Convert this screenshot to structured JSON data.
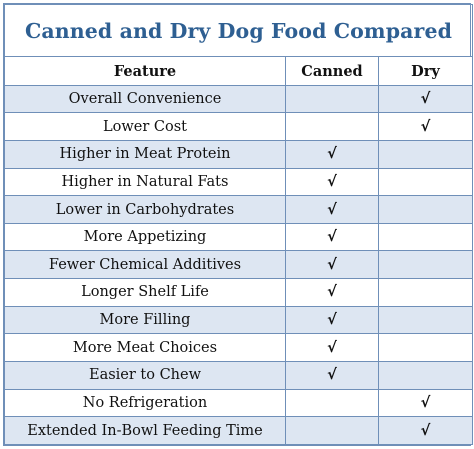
{
  "title": "Canned and Dry Dog Food Compared",
  "headers": {
    "feature": "Feature",
    "canned": "Canned",
    "dry": "Dry"
  },
  "check_symbol": "√",
  "rows": [
    {
      "feature": "Overall Convenience",
      "canned": "",
      "dry": "√"
    },
    {
      "feature": "Lower Cost",
      "canned": "",
      "dry": "√"
    },
    {
      "feature": "Higher in Meat Protein",
      "canned": "√",
      "dry": ""
    },
    {
      "feature": "Higher in Natural Fats",
      "canned": "√",
      "dry": ""
    },
    {
      "feature": "Lower in Carbohydrates",
      "canned": "√",
      "dry": ""
    },
    {
      "feature": "More Appetizing",
      "canned": "√",
      "dry": ""
    },
    {
      "feature": "Fewer Chemical Additives",
      "canned": "√",
      "dry": ""
    },
    {
      "feature": "Longer Shelf Life",
      "canned": "√",
      "dry": ""
    },
    {
      "feature": "More Filling",
      "canned": "√",
      "dry": ""
    },
    {
      "feature": "More Meat Choices",
      "canned": "√",
      "dry": ""
    },
    {
      "feature": "Easier to Chew",
      "canned": "√",
      "dry": ""
    },
    {
      "feature": "No Refrigeration",
      "canned": "",
      "dry": "√"
    },
    {
      "feature": "Extended In-Bowl Feeding Time",
      "canned": "",
      "dry": "√"
    }
  ],
  "colors": {
    "title": "#2e5f92",
    "border": "#6f8fb8",
    "alt_row": "#dde6f2"
  }
}
